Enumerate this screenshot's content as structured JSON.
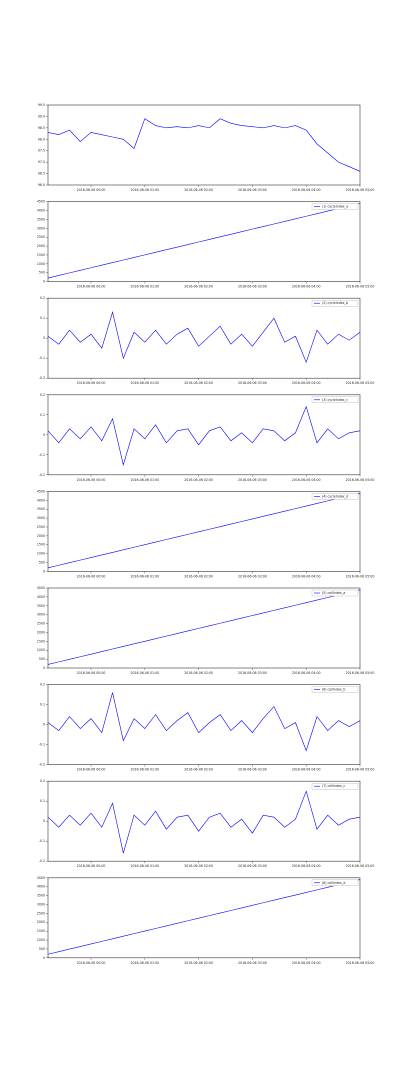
{
  "chart_data": [
    {
      "type": "line",
      "categories": [
        null,
        null,
        null,
        null,
        "2016-06-06 00:00",
        null,
        null,
        null,
        null,
        "2016-06-06 01:00",
        null,
        null,
        null,
        null,
        "2016-06-06 02:00",
        null,
        null,
        null,
        null,
        "2016-06-06 03:00",
        null,
        null,
        null,
        null,
        "2016-06-06 04:00",
        null,
        null,
        null,
        null,
        "2016-06-06 05:00"
      ],
      "series": [
        {
          "color": "#0000ff",
          "values": [
            98.3,
            98.2,
            98.4,
            97.9,
            98.3,
            98.2,
            98.1,
            98.0,
            97.6,
            98.9,
            98.6,
            98.5,
            98.55,
            98.5,
            98.6,
            98.5,
            98.9,
            98.7,
            98.6,
            98.55,
            98.5,
            98.6,
            98.5,
            98.6,
            98.4,
            97.8,
            97.4,
            97.0,
            96.8,
            96.6
          ]
        }
      ],
      "ylim": [
        96.0,
        99.5
      ],
      "yticks": [
        {
          "value": 96,
          "label": "96.0"
        },
        96.5,
        {
          "value": 97,
          "label": "97.0"
        },
        97.5,
        {
          "value": 98,
          "label": "98.0"
        },
        98.5,
        {
          "value": 99,
          "label": "99.0"
        },
        99.5
      ]
    },
    {
      "type": "line",
      "categories": [
        null,
        null,
        null,
        null,
        "2016-06-06 00:00",
        null,
        null,
        null,
        null,
        "2016-06-06 01:00",
        null,
        null,
        null,
        null,
        "2016-06-06 02:00",
        null,
        null,
        null,
        null,
        "2016-06-06 03:00",
        null,
        null,
        null,
        null,
        "2016-06-06 04:00",
        null,
        null,
        null,
        null,
        "2016-06-06 05:00"
      ],
      "series": [
        {
          "name": "(1) cycleIndex_a",
          "color": "#0000ff",
          "values": [
            200,
            345,
            490,
            634,
            779,
            924,
            1069,
            1214,
            1359,
            1503,
            1648,
            1793,
            1938,
            2083,
            2228,
            2372,
            2517,
            2662,
            2807,
            2952,
            3097,
            3241,
            3386,
            3531,
            3676,
            3821,
            3966,
            4110,
            4255,
            4400
          ]
        }
      ],
      "ylim": [
        0,
        4500
      ],
      "yticks": [
        0,
        500,
        1000,
        1500,
        2000,
        2500,
        3000,
        3500,
        4000,
        4500
      ]
    },
    {
      "type": "line",
      "categories": [
        null,
        null,
        null,
        null,
        "2016-06-06 00:00",
        null,
        null,
        null,
        null,
        "2016-06-06 01:00",
        null,
        null,
        null,
        null,
        "2016-06-06 02:00",
        null,
        null,
        null,
        null,
        "2016-06-06 03:00",
        null,
        null,
        null,
        null,
        "2016-06-06 04:00",
        null,
        null,
        null,
        null,
        "2016-06-06 05:00"
      ],
      "series": [
        {
          "name": "(2) cycleIndex_b",
          "color": "#0000ff",
          "values": [
            0.01,
            -0.03,
            0.04,
            -0.02,
            0.02,
            -0.05,
            0.13,
            -0.1,
            0.03,
            -0.02,
            0.04,
            -0.03,
            0.02,
            0.05,
            -0.04,
            0.01,
            0.06,
            -0.03,
            0.02,
            -0.04,
            0.03,
            0.1,
            -0.02,
            0.01,
            -0.12,
            0.04,
            -0.03,
            0.02,
            -0.01,
            0.03
          ]
        }
      ],
      "ylim": [
        -0.2,
        0.2
      ],
      "yticks": [
        -0.2,
        -0.1,
        0,
        0.1,
        0.2
      ]
    },
    {
      "type": "line",
      "categories": [
        null,
        null,
        null,
        null,
        "2016-06-06 00:00",
        null,
        null,
        null,
        null,
        "2016-06-06 01:00",
        null,
        null,
        null,
        null,
        "2016-06-06 02:00",
        null,
        null,
        null,
        null,
        "2016-06-06 03:00",
        null,
        null,
        null,
        null,
        "2016-06-06 04:00",
        null,
        null,
        null,
        null,
        "2016-06-06 05:00"
      ],
      "series": [
        {
          "name": "(3) cycleIndex_c",
          "color": "#0000ff",
          "values": [
            0.02,
            -0.04,
            0.03,
            -0.02,
            0.04,
            -0.03,
            0.08,
            -0.15,
            0.03,
            -0.02,
            0.05,
            -0.04,
            0.02,
            0.03,
            -0.05,
            0.02,
            0.04,
            -0.03,
            0.01,
            -0.04,
            0.03,
            0.02,
            -0.03,
            0.01,
            0.14,
            -0.04,
            0.03,
            -0.02,
            0.01,
            0.02
          ]
        }
      ],
      "ylim": [
        -0.2,
        0.2
      ],
      "yticks": [
        -0.2,
        -0.1,
        0,
        0.1,
        0.2
      ]
    },
    {
      "type": "line",
      "categories": [
        null,
        null,
        null,
        null,
        "2016-06-06 00:00",
        null,
        null,
        null,
        null,
        "2016-06-06 01:00",
        null,
        null,
        null,
        null,
        "2016-06-06 02:00",
        null,
        null,
        null,
        null,
        "2016-06-06 03:00",
        null,
        null,
        null,
        null,
        "2016-06-06 04:00",
        null,
        null,
        null,
        null,
        "2016-06-06 05:00"
      ],
      "series": [
        {
          "name": "(4) cycleIndex_d",
          "color": "#0000ff",
          "values": [
            200,
            345,
            490,
            634,
            779,
            924,
            1069,
            1214,
            1359,
            1503,
            1648,
            1793,
            1938,
            2083,
            2228,
            2372,
            2517,
            2662,
            2807,
            2952,
            3097,
            3241,
            3386,
            3531,
            3676,
            3821,
            3966,
            4110,
            4255,
            4400
          ]
        }
      ],
      "ylim": [
        0,
        4500
      ],
      "yticks": [
        0,
        500,
        1000,
        1500,
        2000,
        2500,
        3000,
        3500,
        4000,
        4500
      ]
    },
    {
      "type": "line",
      "categories": [
        null,
        null,
        null,
        null,
        "2016-06-06 00:00",
        null,
        null,
        null,
        null,
        "2016-06-06 01:00",
        null,
        null,
        null,
        null,
        "2016-06-06 02:00",
        null,
        null,
        null,
        null,
        "2016-06-06 03:00",
        null,
        null,
        null,
        null,
        "2016-06-06 04:00",
        null,
        null,
        null,
        null,
        "2016-06-06 05:00"
      ],
      "series": [
        {
          "name": "(5) cellIndex_a",
          "color": "#0000ff",
          "values": [
            200,
            345,
            490,
            634,
            779,
            924,
            1069,
            1214,
            1359,
            1503,
            1648,
            1793,
            1938,
            2083,
            2228,
            2372,
            2517,
            2662,
            2807,
            2952,
            3097,
            3241,
            3386,
            3531,
            3676,
            3821,
            3966,
            4110,
            4255,
            4400
          ]
        }
      ],
      "ylim": [
        0,
        4500
      ],
      "yticks": [
        0,
        500,
        1000,
        1500,
        2000,
        2500,
        3000,
        3500,
        4000,
        4500
      ]
    },
    {
      "type": "line",
      "categories": [
        null,
        null,
        null,
        null,
        "2016-06-06 00:00",
        null,
        null,
        null,
        null,
        "2016-06-06 01:00",
        null,
        null,
        null,
        null,
        "2016-06-06 02:00",
        null,
        null,
        null,
        null,
        "2016-06-06 03:00",
        null,
        null,
        null,
        null,
        "2016-06-06 04:00",
        null,
        null,
        null,
        null,
        "2016-06-06 05:00"
      ],
      "series": [
        {
          "name": "(6) cellIndex_b",
          "color": "#0000ff",
          "values": [
            0.01,
            -0.03,
            0.04,
            -0.02,
            0.03,
            -0.04,
            0.16,
            -0.08,
            0.03,
            -0.02,
            0.05,
            -0.03,
            0.02,
            0.06,
            -0.04,
            0.01,
            0.05,
            -0.03,
            0.02,
            -0.04,
            0.03,
            0.09,
            -0.02,
            0.01,
            -0.13,
            0.04,
            -0.03,
            0.02,
            -0.01,
            0.02
          ]
        }
      ],
      "ylim": [
        -0.2,
        0.2
      ],
      "yticks": [
        -0.2,
        -0.1,
        0,
        0.1,
        0.2
      ]
    },
    {
      "type": "line",
      "categories": [
        null,
        null,
        null,
        null,
        "2016-06-06 00:00",
        null,
        null,
        null,
        null,
        "2016-06-06 01:00",
        null,
        null,
        null,
        null,
        "2016-06-06 02:00",
        null,
        null,
        null,
        null,
        "2016-06-06 03:00",
        null,
        null,
        null,
        null,
        "2016-06-06 04:00",
        null,
        null,
        null,
        null,
        "2016-06-06 05:00"
      ],
      "series": [
        {
          "name": "(7) cellIndex_c",
          "color": "#0000ff",
          "values": [
            0.02,
            -0.03,
            0.03,
            -0.02,
            0.04,
            -0.03,
            0.09,
            -0.16,
            0.03,
            -0.02,
            0.05,
            -0.04,
            0.02,
            0.03,
            -0.05,
            0.02,
            0.04,
            -0.03,
            0.01,
            -0.06,
            0.03,
            0.02,
            -0.03,
            0.01,
            0.15,
            -0.04,
            0.03,
            -0.02,
            0.01,
            0.02
          ]
        }
      ],
      "ylim": [
        -0.2,
        0.2
      ],
      "yticks": [
        -0.2,
        -0.1,
        0,
        0.1,
        0.2
      ]
    },
    {
      "type": "line",
      "categories": [
        null,
        null,
        null,
        null,
        "2016-06-06 00:00",
        null,
        null,
        null,
        null,
        "2016-06-06 01:00",
        null,
        null,
        null,
        null,
        "2016-06-06 02:00",
        null,
        null,
        null,
        null,
        "2016-06-06 03:00",
        null,
        null,
        null,
        null,
        "2016-06-06 04:00",
        null,
        null,
        null,
        null,
        "2016-06-06 05:00"
      ],
      "series": [
        {
          "name": "(8) cellIndex_d",
          "color": "#0000ff",
          "values": [
            200,
            345,
            490,
            634,
            779,
            924,
            1069,
            1214,
            1359,
            1503,
            1648,
            1793,
            1938,
            2083,
            2228,
            2372,
            2517,
            2662,
            2807,
            2952,
            3097,
            3241,
            3386,
            3531,
            3676,
            3821,
            3966,
            4110,
            4255,
            4400
          ]
        }
      ],
      "ylim": [
        0,
        4500
      ],
      "yticks": [
        0,
        500,
        1000,
        1500,
        2000,
        2500,
        3000,
        3500,
        4000,
        4500
      ]
    }
  ]
}
